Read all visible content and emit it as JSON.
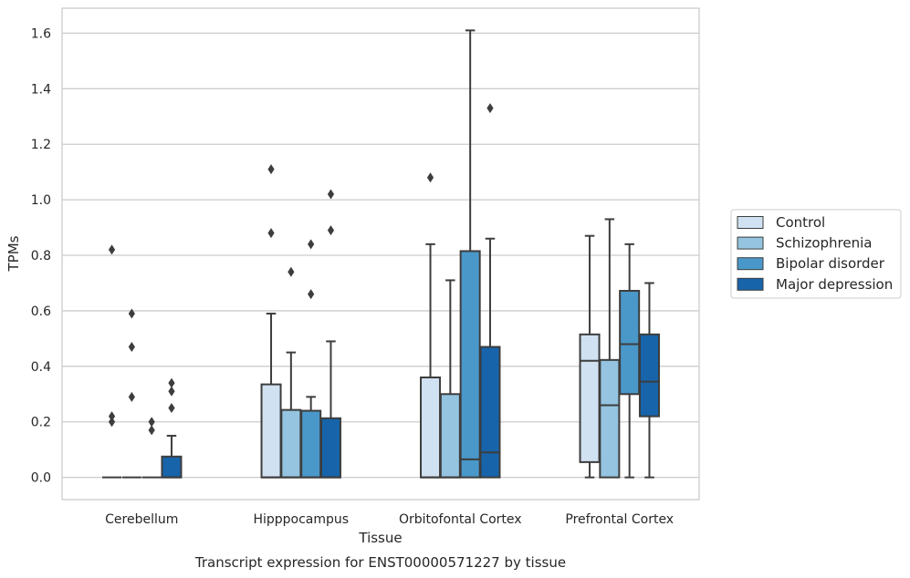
{
  "chart_data": {
    "type": "box",
    "caption": "Transcript expression for ENST00000571227 by tissue",
    "xlabel": "Tissue",
    "ylabel": "TPMs",
    "ylim": [
      -0.08,
      1.69
    ],
    "yticks": [
      0.0,
      0.2,
      0.4,
      0.6,
      0.8,
      1.0,
      1.2,
      1.4,
      1.6
    ],
    "ytick_labels": [
      "0.0",
      "0.2",
      "0.4",
      "0.6",
      "0.8",
      "1.0",
      "1.2",
      "1.4",
      "1.6"
    ],
    "grid": "horizontal",
    "legend_position": "outside-right",
    "categories": [
      "Cerebellum",
      "Hipppocampus",
      "Orbitofontal Cortex",
      "Prefrontal Cortex"
    ],
    "series": [
      {
        "name": "Control",
        "color": "#d0e1f2",
        "boxes": [
          {
            "whislo": 0,
            "q1": 0,
            "med": 0,
            "q3": 0,
            "whishi": 0,
            "fliers": [
              0.2,
              0.22,
              0.82
            ]
          },
          {
            "whislo": 0,
            "q1": 0,
            "med": 0,
            "q3": 0.335,
            "whishi": 0.59,
            "fliers": [
              0.88,
              1.11
            ]
          },
          {
            "whislo": 0,
            "q1": 0,
            "med": 0,
            "q3": 0.36,
            "whishi": 0.84,
            "fliers": [
              1.08
            ]
          },
          {
            "whislo": 0,
            "q1": 0.055,
            "med": 0.42,
            "q3": 0.515,
            "whishi": 0.87,
            "fliers": []
          }
        ]
      },
      {
        "name": "Schizophrenia",
        "color": "#94c4df",
        "boxes": [
          {
            "whislo": 0,
            "q1": 0,
            "med": 0,
            "q3": 0,
            "whishi": 0,
            "fliers": [
              0.29,
              0.47,
              0.59
            ]
          },
          {
            "whislo": 0,
            "q1": 0,
            "med": 0,
            "q3": 0.243,
            "whishi": 0.45,
            "fliers": [
              0.74
            ]
          },
          {
            "whislo": 0,
            "q1": 0,
            "med": 0,
            "q3": 0.3,
            "whishi": 0.71,
            "fliers": []
          },
          {
            "whislo": 0,
            "q1": 0,
            "med": 0.26,
            "q3": 0.423,
            "whishi": 0.93,
            "fliers": []
          }
        ]
      },
      {
        "name": "Bipolar disorder",
        "color": "#4a98c9",
        "boxes": [
          {
            "whislo": 0,
            "q1": 0,
            "med": 0,
            "q3": 0,
            "whishi": 0,
            "fliers": [
              0.17,
              0.2
            ]
          },
          {
            "whislo": 0,
            "q1": 0,
            "med": 0,
            "q3": 0.24,
            "whishi": 0.29,
            "fliers": [
              0.66,
              0.84
            ]
          },
          {
            "whislo": 0,
            "q1": 0,
            "med": 0.065,
            "q3": 0.815,
            "whishi": 1.61,
            "fliers": []
          },
          {
            "whislo": 0,
            "q1": 0.3,
            "med": 0.48,
            "q3": 0.672,
            "whishi": 0.84,
            "fliers": []
          }
        ]
      },
      {
        "name": "Major depression",
        "color": "#1764ab",
        "boxes": [
          {
            "whislo": 0,
            "q1": 0,
            "med": 0,
            "q3": 0.075,
            "whishi": 0.15,
            "fliers": [
              0.25,
              0.31,
              0.34
            ]
          },
          {
            "whislo": 0,
            "q1": 0,
            "med": 0,
            "q3": 0.213,
            "whishi": 0.49,
            "fliers": [
              0.89,
              1.02
            ]
          },
          {
            "whislo": 0,
            "q1": 0,
            "med": 0.09,
            "q3": 0.47,
            "whishi": 0.86,
            "fliers": [
              1.33
            ]
          },
          {
            "whislo": 0,
            "q1": 0.22,
            "med": 0.345,
            "q3": 0.515,
            "whishi": 0.7,
            "fliers": []
          }
        ]
      }
    ]
  }
}
